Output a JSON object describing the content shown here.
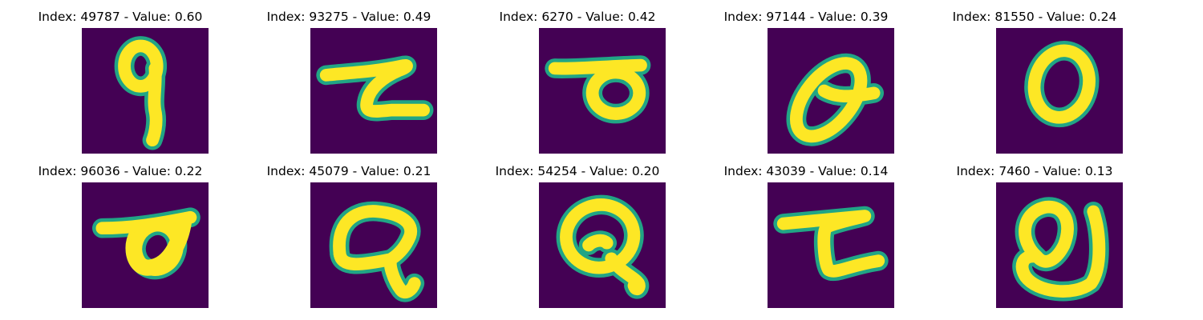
{
  "figure": {
    "colormap": "viridis",
    "background_color": "#440154",
    "stroke_color": "#fde725",
    "edge_color": "#21a585",
    "panels": [
      {
        "index": "49787",
        "value": "0.60",
        "title": "Index: 49787 - Value: 0.60",
        "glyph": "q-shape"
      },
      {
        "index": "93275",
        "value": "0.49",
        "title": "Index: 93275 - Value: 0.49",
        "glyph": "z-shape"
      },
      {
        "index": "6270",
        "value": "0.42",
        "title": "Index: 6270 - Value: 0.42",
        "glyph": "flag-loop-shape"
      },
      {
        "index": "97144",
        "value": "0.39",
        "title": "Index: 97144 - Value: 0.39",
        "glyph": "slanted-loop-shape"
      },
      {
        "index": "81550",
        "value": "0.24",
        "title": "Index: 81550 - Value: 0.24",
        "glyph": "zero-shape"
      },
      {
        "index": "96036",
        "value": "0.22",
        "title": "Index: 96036 - Value: 0.22",
        "glyph": "flag-loop-shape"
      },
      {
        "index": "45079",
        "value": "0.21",
        "title": "Index: 45079 - Value: 0.21",
        "glyph": "a-loop-shape"
      },
      {
        "index": "54254",
        "value": "0.20",
        "title": "Index: 54254 - Value: 0.20",
        "glyph": "a-loop-shape"
      },
      {
        "index": "43039",
        "value": "0.14",
        "title": "Index: 43039 - Value: 0.14",
        "glyph": "z-shape"
      },
      {
        "index": "7460",
        "value": "0.13",
        "title": "Index: 7460 - Value: 0.13",
        "glyph": "double-loop-shape"
      }
    ]
  }
}
